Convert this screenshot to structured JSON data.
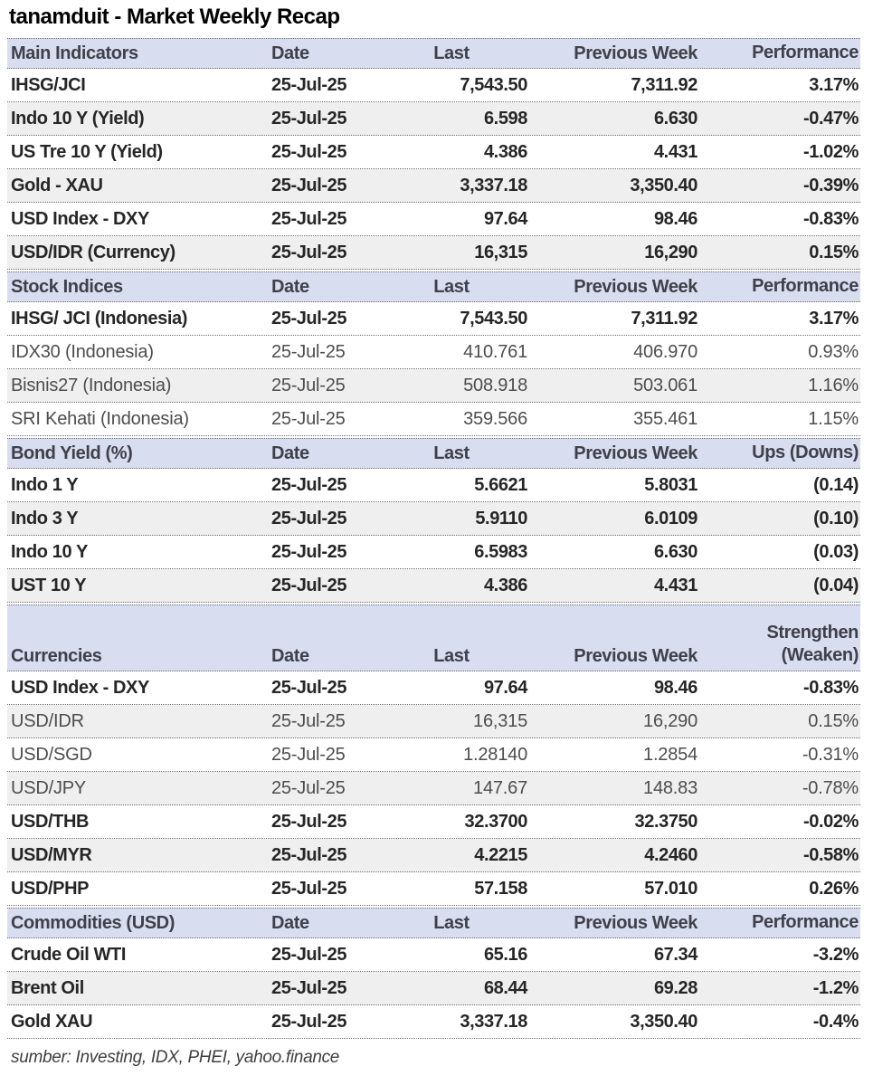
{
  "title": "tanamduit - Market Weekly Recap",
  "footer": "sumber: Investing, IDX, PHEI, yahoo.finance",
  "colors": {
    "header_bg": "#d9ddf0",
    "header_text": "#3f4049",
    "stripe_bg": "#efefef",
    "text": "#262626"
  },
  "columns": {
    "date": "Date",
    "last": "Last",
    "prev": "Previous Week"
  },
  "sections": [
    {
      "name": "Main Indicators",
      "change_header": "Performance",
      "rows": [
        {
          "label": "IHSG/JCI",
          "date": "25-Jul-25",
          "last": "7,543.50",
          "prev": "7,311.92",
          "change": "3.17%",
          "stripe": false,
          "muted": false
        },
        {
          "label": "Indo 10 Y (Yield)",
          "date": "25-Jul-25",
          "last": "6.598",
          "prev": "6.630",
          "change": "-0.47%",
          "stripe": true,
          "muted": false
        },
        {
          "label": "US Tre 10 Y (Yield)",
          "date": "25-Jul-25",
          "last": "4.386",
          "prev": "4.431",
          "change": "-1.02%",
          "stripe": false,
          "muted": false
        },
        {
          "label": "Gold - XAU",
          "date": "25-Jul-25",
          "last": "3,337.18",
          "prev": "3,350.40",
          "change": "-0.39%",
          "stripe": true,
          "muted": false
        },
        {
          "label": "USD Index - DXY",
          "date": "25-Jul-25",
          "last": "97.64",
          "prev": "98.46",
          "change": "-0.83%",
          "stripe": false,
          "muted": false
        },
        {
          "label": "USD/IDR (Currency)",
          "date": "25-Jul-25",
          "last": "16,315",
          "prev": "16,290",
          "change": "0.15%",
          "stripe": true,
          "muted": false
        }
      ]
    },
    {
      "name": "Stock Indices",
      "change_header": "Performance",
      "rows": [
        {
          "label": "IHSG/ JCI (Indonesia)",
          "date": "25-Jul-25",
          "last": "7,543.50",
          "prev": "7,311.92",
          "change": "3.17%",
          "stripe": false,
          "muted": false
        },
        {
          "label": "IDX30 (Indonesia)",
          "date": "25-Jul-25",
          "last": "410.761",
          "prev": "406.970",
          "change": "0.93%",
          "stripe": false,
          "muted": true
        },
        {
          "label": "Bisnis27 (Indonesia)",
          "date": "25-Jul-25",
          "last": "508.918",
          "prev": "503.061",
          "change": "1.16%",
          "stripe": true,
          "muted": true
        },
        {
          "label": "SRI Kehati (Indonesia)",
          "date": "25-Jul-25",
          "last": "359.566",
          "prev": "355.461",
          "change": "1.15%",
          "stripe": false,
          "muted": true
        }
      ]
    },
    {
      "name": "Bond Yield (%)",
      "change_header": "Ups (Downs)",
      "rows": [
        {
          "label": "Indo 1 Y",
          "date": "25-Jul-25",
          "last": "5.6621",
          "prev": "5.8031",
          "change": "(0.14)",
          "stripe": false,
          "muted": false
        },
        {
          "label": "Indo 3 Y",
          "date": "25-Jul-25",
          "last": "5.9110",
          "prev": "6.0109",
          "change": "(0.10)",
          "stripe": true,
          "muted": false
        },
        {
          "label": "Indo 10 Y",
          "date": "25-Jul-25",
          "last": "6.5983",
          "prev": "6.630",
          "change": "(0.03)",
          "stripe": false,
          "muted": false
        },
        {
          "label": "UST 10 Y",
          "date": "25-Jul-25",
          "last": "4.386",
          "prev": "4.431",
          "change": "(0.04)",
          "stripe": true,
          "muted": false
        }
      ]
    },
    {
      "name": "Currencies",
      "change_header": "Strengthen\n(Weaken)",
      "rows": [
        {
          "label": "USD Index - DXY",
          "date": "25-Jul-25",
          "last": "97.64",
          "prev": "98.46",
          "change": "-0.83%",
          "stripe": false,
          "muted": false
        },
        {
          "label": "USD/IDR",
          "date": "25-Jul-25",
          "last": "16,315",
          "prev": "16,290",
          "change": "0.15%",
          "stripe": true,
          "muted": true
        },
        {
          "label": "USD/SGD",
          "date": "25-Jul-25",
          "last": "1.28140",
          "prev": "1.2854",
          "change": "-0.31%",
          "stripe": false,
          "muted": true
        },
        {
          "label": "USD/JPY",
          "date": "25-Jul-25",
          "last": "147.67",
          "prev": "148.83",
          "change": "-0.78%",
          "stripe": true,
          "muted": true
        },
        {
          "label": "USD/THB",
          "date": "25-Jul-25",
          "last": "32.3700",
          "prev": "32.3750",
          "change": "-0.02%",
          "stripe": false,
          "muted": false
        },
        {
          "label": "USD/MYR",
          "date": "25-Jul-25",
          "last": "4.2215",
          "prev": "4.2460",
          "change": "-0.58%",
          "stripe": true,
          "muted": false
        },
        {
          "label": "USD/PHP",
          "date": "25-Jul-25",
          "last": "57.158",
          "prev": "57.010",
          "change": "0.26%",
          "stripe": false,
          "muted": false
        }
      ]
    },
    {
      "name": "Commodities (USD)",
      "change_header": "Performance",
      "rows": [
        {
          "label": "Crude Oil WTI",
          "date": "25-Jul-25",
          "last": "65.16",
          "prev": "67.34",
          "change": "-3.2%",
          "stripe": false,
          "muted": false
        },
        {
          "label": "Brent Oil",
          "date": "25-Jul-25",
          "last": "68.44",
          "prev": "69.28",
          "change": "-1.2%",
          "stripe": true,
          "muted": false
        },
        {
          "label": "Gold XAU",
          "date": "25-Jul-25",
          "last": "3,337.18",
          "prev": "3,350.40",
          "change": "-0.4%",
          "stripe": false,
          "muted": false
        }
      ]
    }
  ]
}
